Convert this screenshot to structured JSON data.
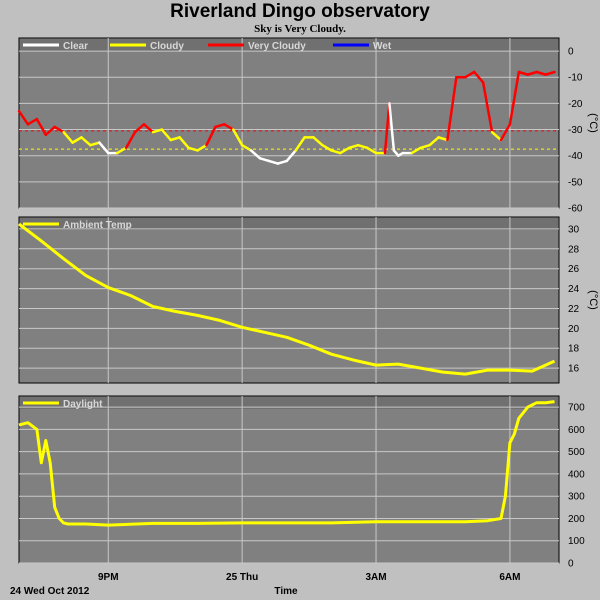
{
  "title": "Riverland Dingo observatory",
  "subtitle": "Sky is Very Cloudy.",
  "colors": {
    "panel_bg": "#808080",
    "grid": "#c8c8c8",
    "clear": "#ffffff",
    "cloudy": "#ffff00",
    "very_cloudy": "#ff0000",
    "wet": "#0000ff",
    "frame": "#000000"
  },
  "x_axis": {
    "tick_labels": [
      "9PM",
      "25 Thu",
      "3AM",
      "6AM"
    ],
    "tick_hours": [
      21,
      24,
      27,
      30
    ],
    "range_hours": [
      19,
      31.1
    ],
    "date_label": "24 Wed Oct 2012",
    "title": "Time"
  },
  "chart_data": [
    {
      "type": "line",
      "name": "sky",
      "legend": [
        {
          "label": "Clear",
          "color": "#ffffff"
        },
        {
          "label": "Cloudy",
          "color": "#ffff00"
        },
        {
          "label": "Very Cloudy",
          "color": "#ff0000"
        },
        {
          "label": "Wet",
          "color": "#0000ff"
        }
      ],
      "unit": "(°C)",
      "ylim": [
        -60,
        5
      ],
      "yticks": [
        0,
        -10,
        -20,
        -30,
        -40,
        -50,
        -60
      ],
      "thresholds": [
        {
          "value": -30.5,
          "color": "#ff0000"
        },
        {
          "value": -37.5,
          "color": "#ffff00"
        }
      ],
      "x": [
        19.0,
        19.2,
        19.4,
        19.6,
        19.8,
        20.0,
        20.2,
        20.4,
        20.6,
        20.8,
        21.0,
        21.2,
        21.4,
        21.6,
        21.8,
        22.0,
        22.2,
        22.4,
        22.6,
        22.8,
        23.0,
        23.2,
        23.4,
        23.6,
        23.8,
        24.0,
        24.2,
        24.4,
        24.6,
        24.8,
        25.0,
        25.2,
        25.4,
        25.6,
        25.8,
        26.0,
        26.2,
        26.4,
        26.6,
        26.8,
        27.0,
        27.2,
        27.3,
        27.4,
        27.5,
        27.6,
        27.8,
        28.0,
        28.2,
        28.4,
        28.6,
        28.8,
        29.0,
        29.2,
        29.4,
        29.6,
        29.8,
        30.0,
        30.2,
        30.4,
        30.6,
        30.8,
        31.0
      ],
      "y": [
        -23,
        -28,
        -26,
        -32,
        -29,
        -31,
        -35,
        -33,
        -36,
        -35,
        -39,
        -39,
        -37,
        -31,
        -28,
        -31,
        -30,
        -34,
        -33,
        -37,
        -38,
        -36,
        -29,
        -28,
        -30,
        -36,
        -38,
        -41,
        -42,
        -43,
        -42,
        -38,
        -33,
        -33,
        -36,
        -38,
        -39,
        -37,
        -36,
        -37,
        -39,
        -39,
        -20,
        -38,
        -40,
        -39,
        -39,
        -37,
        -36,
        -33,
        -34,
        -10,
        -10,
        -8,
        -12,
        -31,
        -34,
        -28,
        -8,
        -9,
        -8,
        -9,
        -8
      ],
      "category": [
        "very_cloudy",
        "very_cloudy",
        "very_cloudy",
        "very_cloudy",
        "very_cloudy",
        "very_cloudy",
        "cloudy",
        "cloudy",
        "cloudy",
        "cloudy",
        "clear",
        "clear",
        "cloudy",
        "very_cloudy",
        "very_cloudy",
        "very_cloudy",
        "cloudy",
        "cloudy",
        "cloudy",
        "cloudy",
        "cloudy",
        "cloudy",
        "very_cloudy",
        "very_cloudy",
        "very_cloudy",
        "cloudy",
        "cloudy",
        "clear",
        "clear",
        "clear",
        "clear",
        "clear",
        "cloudy",
        "cloudy",
        "cloudy",
        "cloudy",
        "cloudy",
        "cloudy",
        "cloudy",
        "cloudy",
        "cloudy",
        "cloudy",
        "very_cloudy",
        "clear",
        "clear",
        "clear",
        "clear",
        "cloudy",
        "cloudy",
        "cloudy",
        "cloudy",
        "very_cloudy",
        "very_cloudy",
        "very_cloudy",
        "very_cloudy",
        "very_cloudy",
        "cloudy",
        "very_cloudy",
        "very_cloudy",
        "very_cloudy",
        "very_cloudy",
        "very_cloudy",
        "very_cloudy"
      ]
    },
    {
      "type": "line",
      "name": "Ambient Temp",
      "legend": [
        {
          "label": "Ambient Temp",
          "color": "#ffff00"
        }
      ],
      "unit": "(°C)",
      "ylim": [
        14.5,
        31.2
      ],
      "yticks": [
        30,
        28,
        26,
        24,
        22,
        20,
        18,
        16
      ],
      "x": [
        19.0,
        19.5,
        20.0,
        20.5,
        21.0,
        21.5,
        22.0,
        22.5,
        23.0,
        23.5,
        24.0,
        24.5,
        25.0,
        25.5,
        26.0,
        26.5,
        27.0,
        27.5,
        28.0,
        28.5,
        29.0,
        29.5,
        30.0,
        30.5,
        31.0
      ],
      "y": [
        30.5,
        28.8,
        27,
        25.3,
        24.1,
        23.3,
        22.2,
        21.7,
        21.3,
        20.8,
        20.1,
        19.6,
        19.1,
        18.3,
        17.4,
        16.8,
        16.3,
        16.4,
        16.0,
        15.6,
        15.4,
        15.8,
        15.8,
        15.7,
        16.7
      ],
      "category": []
    },
    {
      "type": "line",
      "name": "Daylight",
      "legend": [
        {
          "label": "Daylight",
          "color": "#ffff00"
        }
      ],
      "unit": "",
      "ylim": [
        0,
        750
      ],
      "yticks": [
        700,
        600,
        500,
        400,
        300,
        200,
        100,
        0
      ],
      "x": [
        19.0,
        19.2,
        19.4,
        19.5,
        19.6,
        19.7,
        19.8,
        19.9,
        20.0,
        20.1,
        20.5,
        21.0,
        22.0,
        23.0,
        24.0,
        25.0,
        26.0,
        27.0,
        28.0,
        29.0,
        29.5,
        29.8,
        29.9,
        30.0,
        30.1,
        30.2,
        30.4,
        30.6,
        30.8,
        31.0
      ],
      "y": [
        620,
        630,
        600,
        450,
        550,
        450,
        250,
        200,
        180,
        175,
        175,
        170,
        178,
        178,
        180,
        180,
        180,
        185,
        185,
        185,
        190,
        200,
        300,
        540,
        580,
        650,
        700,
        720,
        720,
        725
      ],
      "category": []
    }
  ]
}
